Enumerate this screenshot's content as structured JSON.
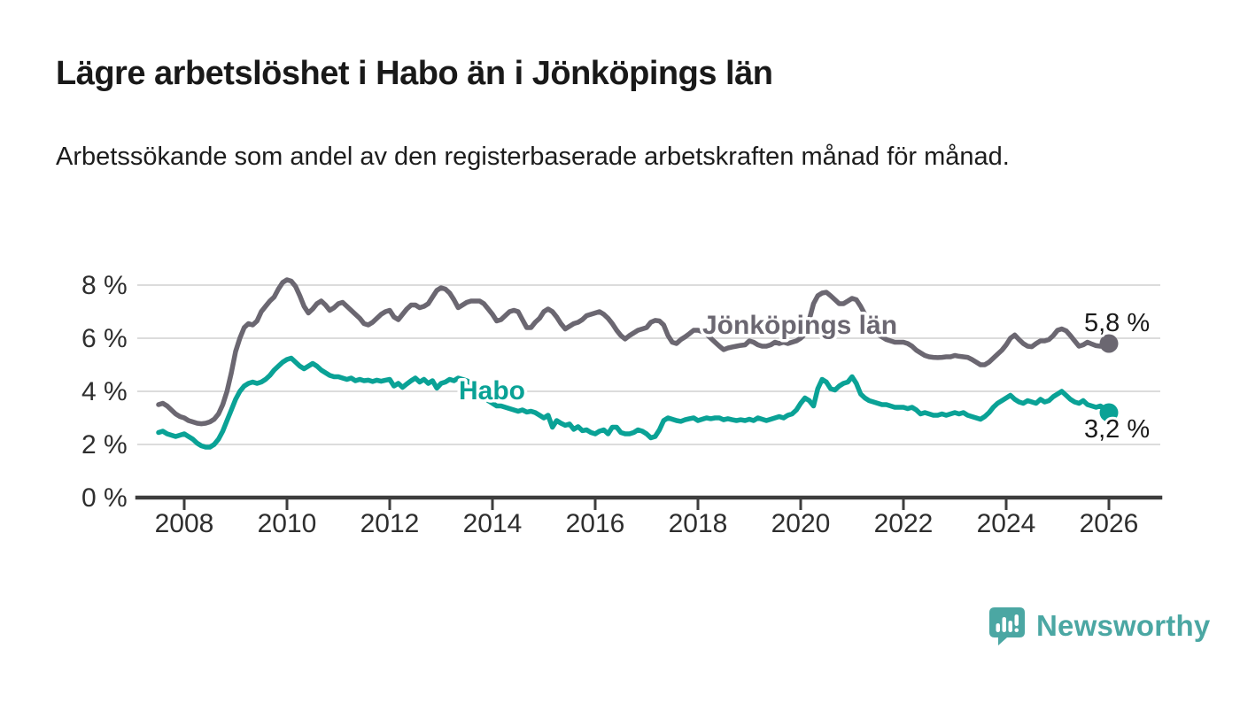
{
  "header": {
    "title": "Lägre arbetslöshet i Habo än i Jönköpings län",
    "subtitle": "Arbetssökande som andel av den registerbaserade arbetskraften månad för månad."
  },
  "chart_data": {
    "type": "line",
    "title": "Lägre arbetslöshet i Habo än i Jönköpings län",
    "subtitle": "Arbetssökande som andel av den registerbaserade arbetskraften månad för månad.",
    "unit": "%",
    "x_start_decimal_year": 2007.5,
    "points_per_year": 12,
    "x_tick_years": [
      "2008",
      "2010",
      "2012",
      "2014",
      "2016",
      "2018",
      "2020",
      "2022",
      "2024",
      "2026"
    ],
    "y_ticks": [
      {
        "value": 0,
        "label": "0 %"
      },
      {
        "value": 2,
        "label": "2 %"
      },
      {
        "value": 4,
        "label": "4 %"
      },
      {
        "value": 6,
        "label": "6 %"
      },
      {
        "value": 8,
        "label": "8 %"
      }
    ],
    "ylim": [
      0,
      8.6
    ],
    "grid": "horizontal",
    "legend_position": "inline-labels",
    "series": [
      {
        "name": "Jönköpings län",
        "color": "#6b6771",
        "end_label": "5,8 %",
        "end_value": 5.8,
        "values": [
          3.5,
          3.55,
          3.45,
          3.3,
          3.15,
          3.05,
          3.0,
          2.9,
          2.85,
          2.8,
          2.78,
          2.8,
          2.85,
          2.95,
          3.15,
          3.5,
          4.0,
          4.7,
          5.5,
          6.0,
          6.4,
          6.55,
          6.5,
          6.65,
          7.0,
          7.2,
          7.4,
          7.55,
          7.85,
          8.1,
          8.2,
          8.15,
          7.95,
          7.6,
          7.2,
          6.95,
          7.1,
          7.3,
          7.4,
          7.25,
          7.05,
          7.15,
          7.3,
          7.35,
          7.2,
          7.05,
          6.9,
          6.75,
          6.55,
          6.5,
          6.6,
          6.75,
          6.9,
          7.0,
          7.05,
          6.8,
          6.7,
          6.9,
          7.1,
          7.25,
          7.25,
          7.15,
          7.2,
          7.3,
          7.55,
          7.8,
          7.9,
          7.85,
          7.7,
          7.45,
          7.15,
          7.25,
          7.35,
          7.4,
          7.4,
          7.4,
          7.3,
          7.1,
          6.9,
          6.65,
          6.7,
          6.85,
          7.0,
          7.05,
          7.0,
          6.7,
          6.4,
          6.4,
          6.6,
          6.75,
          7.0,
          7.1,
          7.0,
          6.8,
          6.55,
          6.35,
          6.45,
          6.55,
          6.6,
          6.7,
          6.85,
          6.9,
          6.95,
          7.0,
          6.9,
          6.75,
          6.55,
          6.3,
          6.1,
          5.97,
          6.1,
          6.2,
          6.3,
          6.35,
          6.4,
          6.6,
          6.67,
          6.65,
          6.5,
          6.1,
          5.85,
          5.8,
          5.95,
          6.05,
          6.17,
          6.3,
          6.3,
          6.25,
          6.15,
          6.0,
          5.85,
          5.7,
          5.57,
          5.63,
          5.67,
          5.7,
          5.73,
          5.75,
          5.9,
          5.85,
          5.75,
          5.7,
          5.7,
          5.75,
          5.85,
          5.8,
          5.85,
          5.8,
          5.85,
          5.9,
          6.0,
          6.15,
          6.7,
          7.3,
          7.6,
          7.7,
          7.73,
          7.6,
          7.45,
          7.3,
          7.3,
          7.4,
          7.5,
          7.45,
          7.2,
          6.9,
          6.6,
          6.35,
          6.15,
          6.05,
          5.95,
          5.9,
          5.85,
          5.85,
          5.85,
          5.8,
          5.7,
          5.55,
          5.45,
          5.35,
          5.3,
          5.28,
          5.27,
          5.28,
          5.3,
          5.3,
          5.35,
          5.32,
          5.3,
          5.28,
          5.2,
          5.1,
          5.0,
          5.0,
          5.1,
          5.25,
          5.4,
          5.55,
          5.75,
          6.0,
          6.12,
          5.95,
          5.8,
          5.7,
          5.68,
          5.8,
          5.9,
          5.9,
          5.95,
          6.1,
          6.3,
          6.35,
          6.28,
          6.1,
          5.9,
          5.7,
          5.75,
          5.85,
          5.78,
          5.72,
          5.7,
          5.75,
          5.8
        ]
      },
      {
        "name": "Habo",
        "color": "#0aa296",
        "end_label": "3,2 %",
        "end_value": 3.2,
        "values": [
          2.45,
          2.5,
          2.4,
          2.35,
          2.3,
          2.35,
          2.4,
          2.3,
          2.2,
          2.05,
          1.95,
          1.9,
          1.9,
          2.0,
          2.2,
          2.5,
          2.9,
          3.3,
          3.7,
          4.0,
          4.2,
          4.3,
          4.35,
          4.3,
          4.35,
          4.45,
          4.6,
          4.8,
          4.95,
          5.1,
          5.2,
          5.25,
          5.1,
          4.95,
          4.85,
          4.95,
          5.05,
          4.95,
          4.8,
          4.7,
          4.6,
          4.55,
          4.55,
          4.5,
          4.45,
          4.5,
          4.4,
          4.45,
          4.4,
          4.42,
          4.37,
          4.42,
          4.38,
          4.42,
          4.45,
          4.2,
          4.3,
          4.15,
          4.28,
          4.4,
          4.5,
          4.35,
          4.45,
          4.3,
          4.4,
          4.12,
          4.3,
          4.35,
          4.45,
          4.4,
          4.5,
          4.45,
          4.4,
          4.3,
          4.15,
          4.0,
          3.85,
          3.65,
          3.55,
          3.45,
          3.45,
          3.4,
          3.35,
          3.3,
          3.25,
          3.3,
          3.22,
          3.25,
          3.2,
          3.1,
          3.0,
          3.1,
          2.65,
          2.9,
          2.8,
          2.72,
          2.77,
          2.57,
          2.67,
          2.52,
          2.55,
          2.45,
          2.4,
          2.5,
          2.55,
          2.4,
          2.65,
          2.65,
          2.45,
          2.4,
          2.4,
          2.45,
          2.55,
          2.5,
          2.4,
          2.25,
          2.3,
          2.55,
          2.9,
          3.0,
          2.95,
          2.9,
          2.87,
          2.93,
          2.97,
          3.0,
          2.9,
          2.95,
          3.0,
          2.97,
          3.0,
          3.0,
          2.93,
          2.97,
          2.93,
          2.9,
          2.93,
          2.9,
          2.95,
          2.9,
          3.0,
          2.95,
          2.9,
          2.95,
          3.0,
          3.05,
          3.0,
          3.1,
          3.15,
          3.3,
          3.55,
          3.75,
          3.65,
          3.45,
          4.1,
          4.45,
          4.35,
          4.1,
          4.05,
          4.2,
          4.3,
          4.35,
          4.55,
          4.3,
          3.9,
          3.75,
          3.65,
          3.6,
          3.55,
          3.5,
          3.5,
          3.45,
          3.4,
          3.4,
          3.4,
          3.35,
          3.4,
          3.3,
          3.15,
          3.2,
          3.15,
          3.1,
          3.1,
          3.15,
          3.1,
          3.15,
          3.2,
          3.15,
          3.2,
          3.1,
          3.05,
          3.0,
          2.95,
          3.05,
          3.2,
          3.4,
          3.55,
          3.65,
          3.75,
          3.85,
          3.7,
          3.6,
          3.55,
          3.65,
          3.6,
          3.55,
          3.7,
          3.6,
          3.65,
          3.8,
          3.9,
          4.0,
          3.85,
          3.7,
          3.6,
          3.55,
          3.65,
          3.5,
          3.45,
          3.4,
          3.45,
          3.35,
          3.2
        ]
      }
    ]
  },
  "footer": {
    "brand": "Newsworthy",
    "brand_color": "#4ba7a3"
  }
}
